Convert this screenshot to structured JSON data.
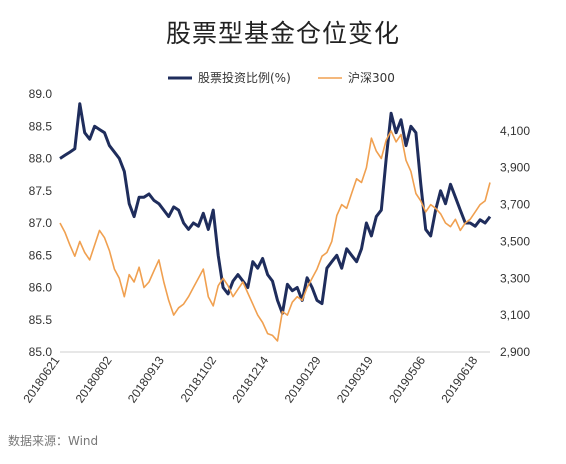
{
  "title": "股票型基金仓位变化",
  "source": "数据来源：Wind",
  "chart_data": {
    "type": "line",
    "legend_position": "top",
    "grid": false,
    "x_ticks": [
      "20180621",
      "20180802",
      "20180913",
      "20181102",
      "20181214",
      "20190129",
      "20190319",
      "20190506",
      "20190618"
    ],
    "y_left": {
      "min": 85.0,
      "max": 89.0,
      "ticks": [
        "85.0",
        "85.5",
        "86.0",
        "86.5",
        "87.0",
        "87.5",
        "88.0",
        "88.5",
        "89.0"
      ]
    },
    "y_right": {
      "min": 2900,
      "max": 4300,
      "ticks": [
        "2,900",
        "3,100",
        "3,300",
        "3,500",
        "3,700",
        "3,900",
        "4,100"
      ]
    },
    "series": [
      {
        "name": "股票投资比例(%)",
        "axis": "left",
        "color": "#1f2d5c",
        "values": [
          88.0,
          88.05,
          88.1,
          88.15,
          88.85,
          88.4,
          88.3,
          88.5,
          88.45,
          88.4,
          88.2,
          88.1,
          88.0,
          87.8,
          87.3,
          87.1,
          87.4,
          87.4,
          87.45,
          87.35,
          87.3,
          87.2,
          87.1,
          87.25,
          87.2,
          87.0,
          86.9,
          87.0,
          86.95,
          87.15,
          86.9,
          87.2,
          86.5,
          86.0,
          85.9,
          86.1,
          86.2,
          86.1,
          86.0,
          86.4,
          86.3,
          86.45,
          86.2,
          86.1,
          85.8,
          85.6,
          86.05,
          85.95,
          86.0,
          85.8,
          86.15,
          86.0,
          85.8,
          85.75,
          86.3,
          86.4,
          86.5,
          86.3,
          86.6,
          86.5,
          86.4,
          86.6,
          87.0,
          86.8,
          87.1,
          87.2,
          88.0,
          88.7,
          88.4,
          88.6,
          88.2,
          88.5,
          88.4,
          87.6,
          86.9,
          86.8,
          87.2,
          87.5,
          87.3,
          87.6,
          87.4,
          87.2,
          87.0,
          87.0,
          86.95,
          87.05,
          87.0,
          87.1
        ]
      },
      {
        "name": "沪深300",
        "axis": "right",
        "color": "#f0a050",
        "values": [
          3600,
          3550,
          3480,
          3420,
          3500,
          3440,
          3400,
          3480,
          3560,
          3520,
          3450,
          3350,
          3300,
          3200,
          3320,
          3280,
          3360,
          3250,
          3280,
          3340,
          3400,
          3280,
          3180,
          3100,
          3140,
          3160,
          3200,
          3250,
          3300,
          3350,
          3200,
          3150,
          3260,
          3300,
          3260,
          3200,
          3240,
          3280,
          3220,
          3160,
          3100,
          3060,
          3000,
          2990,
          2960,
          3120,
          3100,
          3170,
          3200,
          3180,
          3250,
          3300,
          3350,
          3420,
          3440,
          3500,
          3640,
          3700,
          3680,
          3760,
          3840,
          3820,
          3900,
          4060,
          3990,
          3950,
          4050,
          4100,
          4040,
          4080,
          3940,
          3880,
          3760,
          3720,
          3660,
          3700,
          3680,
          3650,
          3600,
          3580,
          3620,
          3560,
          3600,
          3620,
          3660,
          3700,
          3720,
          3820
        ]
      }
    ]
  }
}
